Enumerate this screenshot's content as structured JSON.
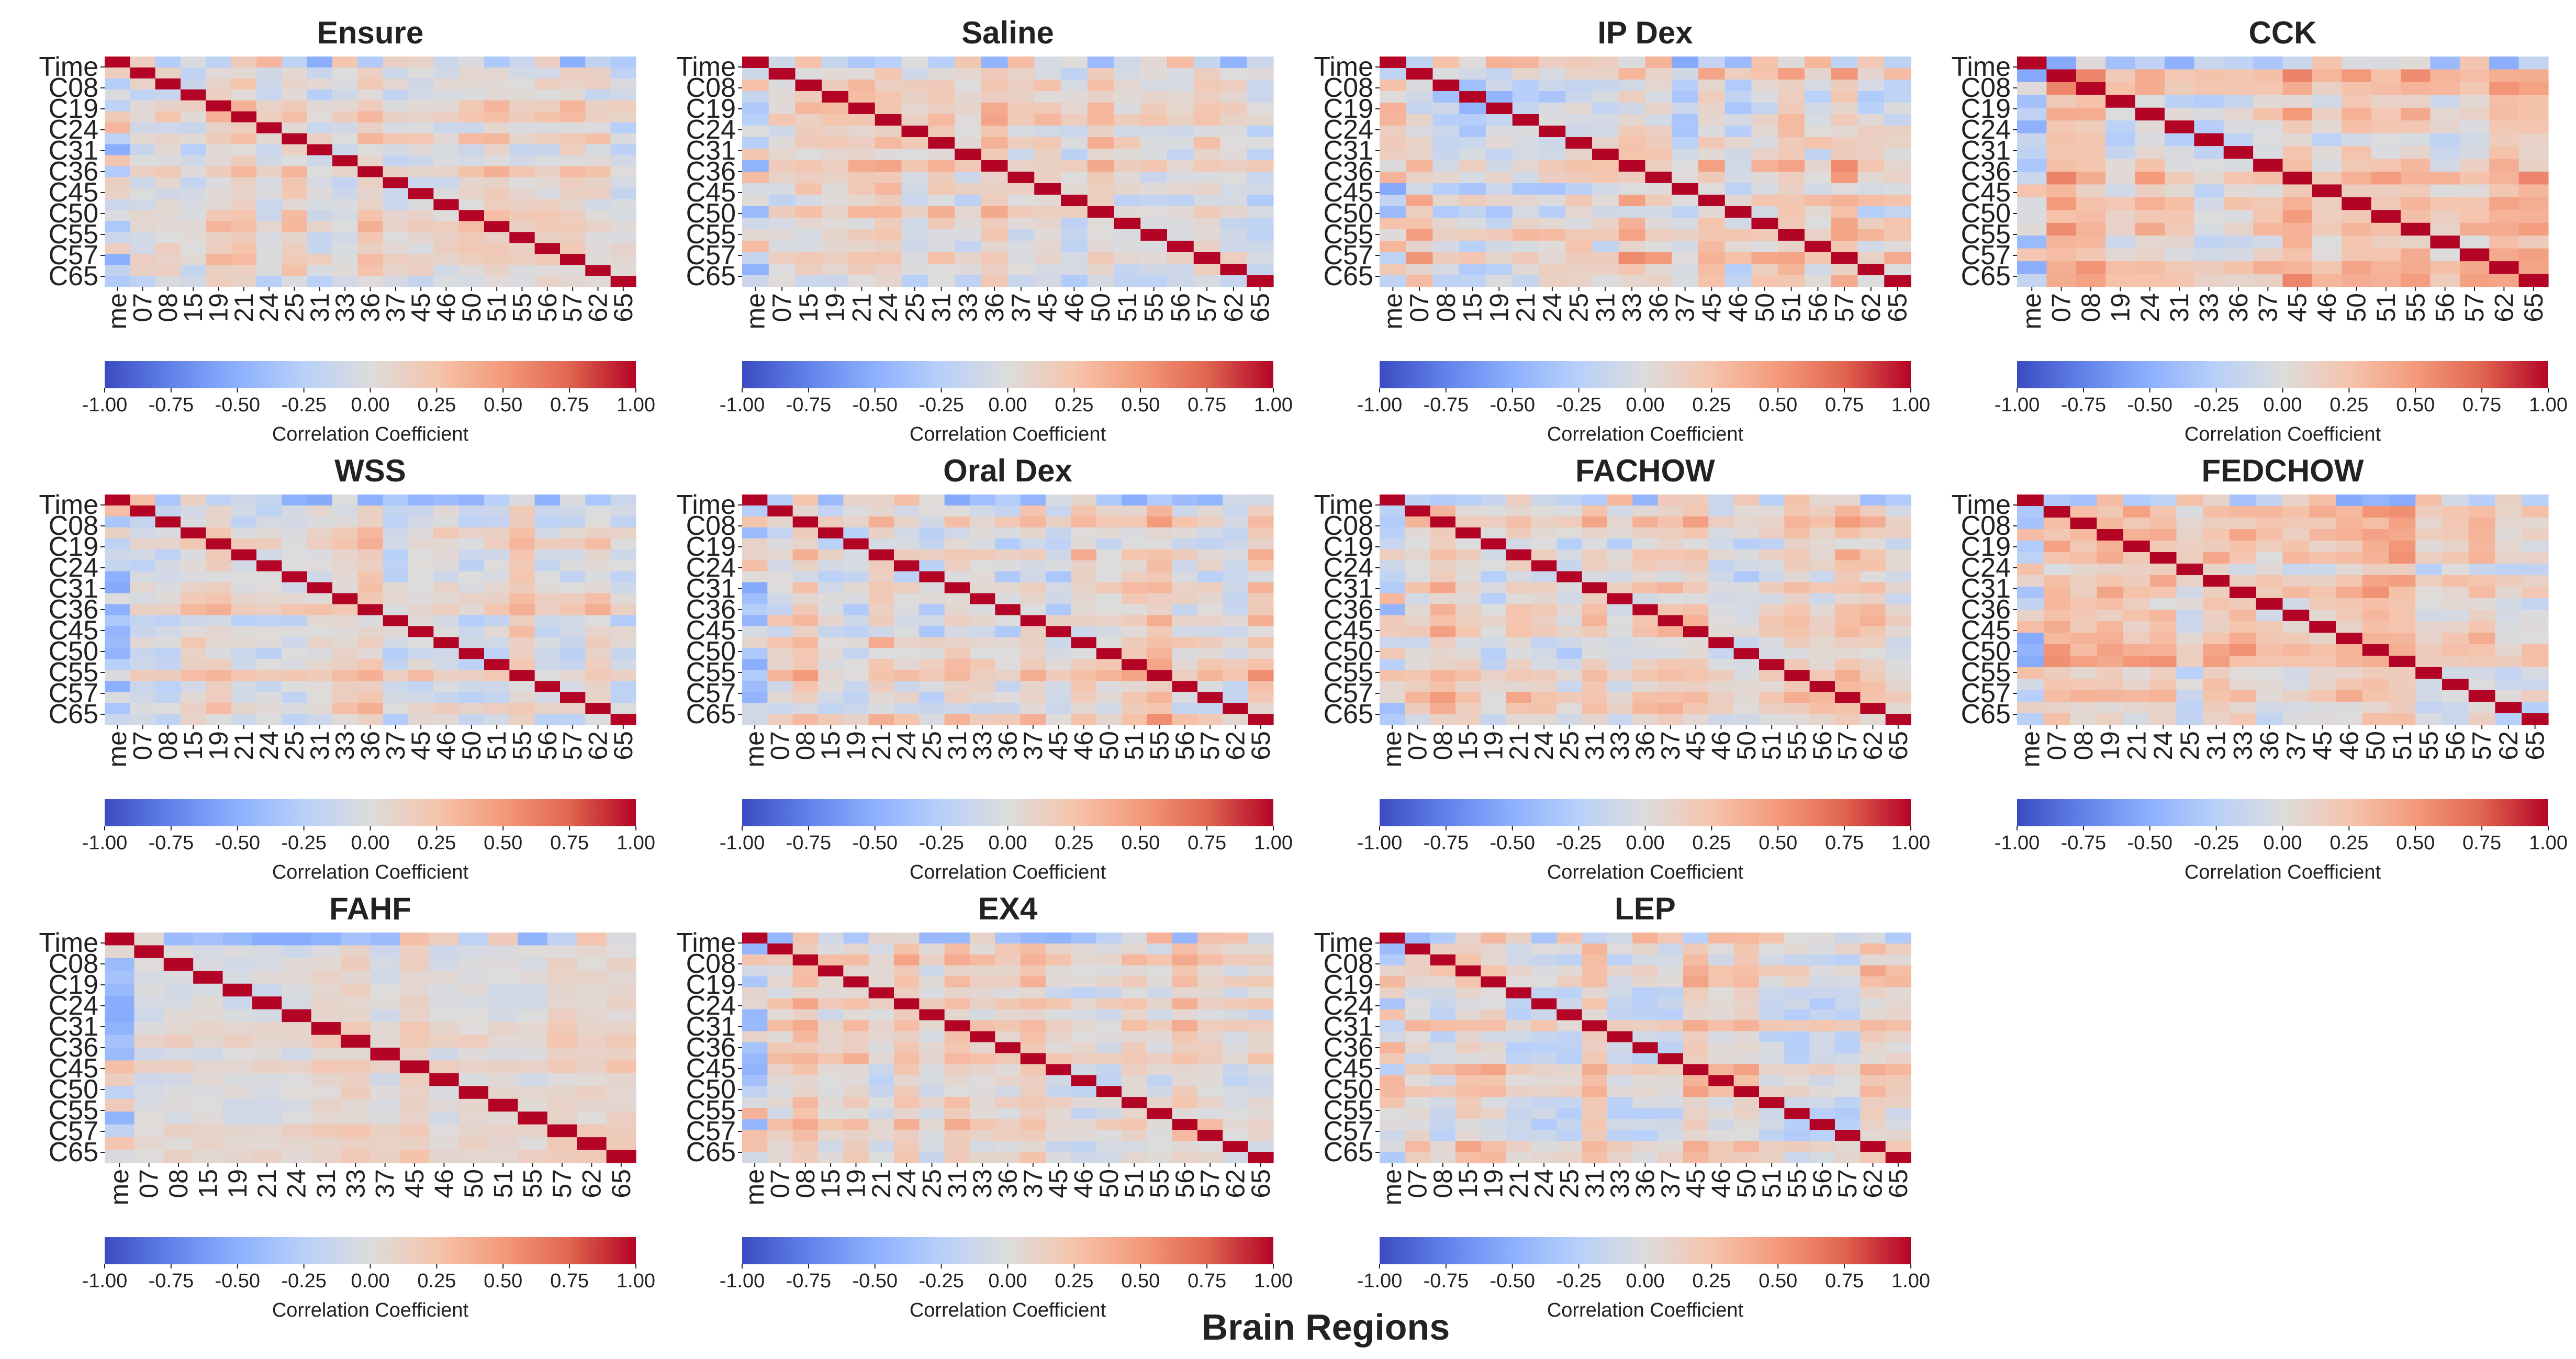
{
  "figure": {
    "supxlabel": "Brain Regions"
  },
  "chart_data": [
    {
      "type": "heatmap",
      "title": "Ensure",
      "seed": 11,
      "strength": 0.35,
      "y_tick_labels": [
        "Time",
        "C08",
        "C19",
        "C24",
        "C31",
        "C36",
        "C45",
        "C50",
        "C55",
        "C57",
        "C65"
      ],
      "x_tick_labels": [
        "me",
        "07",
        "08",
        "15",
        "19",
        "21",
        "24",
        "25",
        "31",
        "33",
        "36",
        "37",
        "45",
        "46",
        "50",
        "51",
        "55",
        "56",
        "57",
        "62",
        "65"
      ],
      "colorbar": {
        "label": "Correlation Coefficient",
        "range": [
          -1,
          1
        ],
        "ticks": [
          "-1.00",
          "-0.75",
          "-0.50",
          "-0.25",
          "0.00",
          "0.25",
          "0.50",
          "0.75",
          "1.00"
        ],
        "cmap": "coolwarm"
      }
    },
    {
      "type": "heatmap",
      "title": "Saline",
      "seed": 23,
      "strength": 0.35,
      "y_tick_labels": [
        "Time",
        "C08",
        "C19",
        "C24",
        "C31",
        "C36",
        "C45",
        "C50",
        "C55",
        "C57",
        "C65"
      ],
      "x_tick_labels": [
        "me",
        "07",
        "15",
        "19",
        "21",
        "24",
        "25",
        "31",
        "33",
        "36",
        "37",
        "45",
        "46",
        "50",
        "51",
        "55",
        "56",
        "57",
        "62",
        "65"
      ],
      "colorbar": {
        "label": "Correlation Coefficient",
        "range": [
          -1,
          1
        ],
        "ticks": [
          "-1.00",
          "-0.75",
          "-0.50",
          "-0.25",
          "0.00",
          "0.25",
          "0.50",
          "0.75",
          "1.00"
        ],
        "cmap": "coolwarm"
      }
    },
    {
      "type": "heatmap",
      "title": "IP Dex",
      "seed": 37,
      "strength": 0.5,
      "y_tick_labels": [
        "Time",
        "C08",
        "C19",
        "C24",
        "C31",
        "C36",
        "C45",
        "C50",
        "C55",
        "C57",
        "C65"
      ],
      "x_tick_labels": [
        "me",
        "07",
        "08",
        "15",
        "19",
        "21",
        "24",
        "25",
        "31",
        "33",
        "36",
        "37",
        "45",
        "46",
        "50",
        "51",
        "56",
        "57",
        "62",
        "65"
      ],
      "colorbar": {
        "label": "Correlation Coefficient",
        "range": [
          -1,
          1
        ],
        "ticks": [
          "-1.00",
          "-0.75",
          "-0.50",
          "-0.25",
          "0.00",
          "0.25",
          "0.50",
          "0.75",
          "1.00"
        ],
        "cmap": "coolwarm"
      }
    },
    {
      "type": "heatmap",
      "title": "CCK",
      "seed": 41,
      "strength": 0.4,
      "y_tick_labels": [
        "Time",
        "C08",
        "C19",
        "C24",
        "C31",
        "C36",
        "C45",
        "C50",
        "C55",
        "C57",
        "C65"
      ],
      "x_tick_labels": [
        "me",
        "07",
        "08",
        "19",
        "24",
        "31",
        "33",
        "36",
        "37",
        "45",
        "46",
        "50",
        "51",
        "55",
        "56",
        "57",
        "62",
        "65"
      ],
      "colorbar": {
        "label": "Correlation Coefficient",
        "range": [
          -1,
          1
        ],
        "ticks": [
          "-1.00",
          "-0.75",
          "-0.50",
          "-0.25",
          "0.00",
          "0.25",
          "0.50",
          "0.75",
          "1.00"
        ],
        "cmap": "coolwarm"
      }
    },
    {
      "type": "heatmap",
      "title": "WSS",
      "seed": 53,
      "strength": 0.35,
      "y_tick_labels": [
        "Time",
        "C08",
        "C19",
        "C24",
        "C31",
        "C36",
        "C45",
        "C50",
        "C55",
        "C57",
        "C65"
      ],
      "x_tick_labels": [
        "me",
        "07",
        "08",
        "15",
        "19",
        "21",
        "24",
        "25",
        "31",
        "33",
        "36",
        "37",
        "45",
        "46",
        "50",
        "51",
        "55",
        "56",
        "57",
        "62",
        "65"
      ],
      "colorbar": {
        "label": "Correlation Coefficient",
        "range": [
          -1,
          1
        ],
        "ticks": [
          "-1.00",
          "-0.75",
          "-0.50",
          "-0.25",
          "0.00",
          "0.25",
          "0.50",
          "0.75",
          "1.00"
        ],
        "cmap": "coolwarm"
      }
    },
    {
      "type": "heatmap",
      "title": "Oral Dex",
      "seed": 67,
      "strength": 0.4,
      "y_tick_labels": [
        "Time",
        "C08",
        "C19",
        "C24",
        "C31",
        "C36",
        "C45",
        "C50",
        "C55",
        "C57",
        "C65"
      ],
      "x_tick_labels": [
        "me",
        "07",
        "08",
        "15",
        "19",
        "21",
        "24",
        "25",
        "31",
        "33",
        "36",
        "37",
        "45",
        "46",
        "50",
        "51",
        "55",
        "56",
        "57",
        "62",
        "65"
      ],
      "colorbar": {
        "label": "Correlation Coefficient",
        "range": [
          -1,
          1
        ],
        "ticks": [
          "-1.00",
          "-0.75",
          "-0.50",
          "-0.25",
          "0.00",
          "0.25",
          "0.50",
          "0.75",
          "1.00"
        ],
        "cmap": "coolwarm"
      }
    },
    {
      "type": "heatmap",
      "title": "FACHOW",
      "seed": 79,
      "strength": 0.35,
      "y_tick_labels": [
        "Time",
        "C08",
        "C19",
        "C24",
        "C31",
        "C36",
        "C45",
        "C50",
        "C55",
        "C57",
        "C65"
      ],
      "x_tick_labels": [
        "me",
        "07",
        "08",
        "15",
        "19",
        "21",
        "24",
        "25",
        "31",
        "33",
        "36",
        "37",
        "45",
        "46",
        "50",
        "51",
        "55",
        "56",
        "57",
        "62",
        "65"
      ],
      "colorbar": {
        "label": "Correlation Coefficient",
        "range": [
          -1,
          1
        ],
        "ticks": [
          "-1.00",
          "-0.75",
          "-0.50",
          "-0.25",
          "0.00",
          "0.25",
          "0.50",
          "0.75",
          "1.00"
        ],
        "cmap": "coolwarm"
      }
    },
    {
      "type": "heatmap",
      "title": "FEDCHOW",
      "seed": 83,
      "strength": 0.45,
      "y_tick_labels": [
        "Time",
        "C08",
        "C19",
        "C24",
        "C31",
        "C36",
        "C45",
        "C50",
        "C55",
        "C57",
        "C65"
      ],
      "x_tick_labels": [
        "me",
        "07",
        "08",
        "19",
        "21",
        "24",
        "25",
        "31",
        "33",
        "36",
        "37",
        "45",
        "46",
        "50",
        "51",
        "55",
        "56",
        "57",
        "62",
        "65"
      ],
      "colorbar": {
        "label": "Correlation Coefficient",
        "range": [
          -1,
          1
        ],
        "ticks": [
          "-1.00",
          "-0.75",
          "-0.50",
          "-0.25",
          "0.00",
          "0.25",
          "0.50",
          "0.75",
          "1.00"
        ],
        "cmap": "coolwarm"
      }
    },
    {
      "type": "heatmap",
      "title": "FAHF",
      "seed": 97,
      "strength": 0.2,
      "y_tick_labels": [
        "Time",
        "C08",
        "C19",
        "C24",
        "C31",
        "C36",
        "C45",
        "C50",
        "C55",
        "C57",
        "C65"
      ],
      "x_tick_labels": [
        "me",
        "07",
        "08",
        "15",
        "19",
        "21",
        "24",
        "31",
        "33",
        "37",
        "45",
        "46",
        "50",
        "51",
        "55",
        "57",
        "62",
        "65"
      ],
      "colorbar": {
        "label": "Correlation Coefficient",
        "range": [
          -1,
          1
        ],
        "ticks": [
          "-1.00",
          "-0.75",
          "-0.50",
          "-0.25",
          "0.00",
          "0.25",
          "0.50",
          "0.75",
          "1.00"
        ],
        "cmap": "coolwarm"
      }
    },
    {
      "type": "heatmap",
      "title": "EX4",
      "seed": 101,
      "strength": 0.3,
      "y_tick_labels": [
        "Time",
        "C08",
        "C19",
        "C24",
        "C31",
        "C36",
        "C45",
        "C50",
        "C55",
        "C57",
        "C65"
      ],
      "x_tick_labels": [
        "me",
        "07",
        "08",
        "15",
        "19",
        "21",
        "24",
        "25",
        "31",
        "33",
        "36",
        "37",
        "45",
        "46",
        "50",
        "51",
        "55",
        "56",
        "57",
        "62",
        "65"
      ],
      "colorbar": {
        "label": "Correlation Coefficient",
        "range": [
          -1,
          1
        ],
        "ticks": [
          "-1.00",
          "-0.75",
          "-0.50",
          "-0.25",
          "0.00",
          "0.25",
          "0.50",
          "0.75",
          "1.00"
        ],
        "cmap": "coolwarm"
      }
    },
    {
      "type": "heatmap",
      "title": "LEP",
      "seed": 113,
      "strength": 0.35,
      "y_tick_labels": [
        "Time",
        "C08",
        "C19",
        "C24",
        "C31",
        "C36",
        "C45",
        "C50",
        "C55",
        "C57",
        "C65"
      ],
      "x_tick_labels": [
        "me",
        "07",
        "08",
        "15",
        "19",
        "21",
        "24",
        "25",
        "31",
        "33",
        "36",
        "37",
        "45",
        "46",
        "50",
        "51",
        "55",
        "56",
        "57",
        "62",
        "65"
      ],
      "colorbar": {
        "label": "Correlation Coefficient",
        "range": [
          -1,
          1
        ],
        "ticks": [
          "-1.00",
          "-0.75",
          "-0.50",
          "-0.25",
          "0.00",
          "0.25",
          "0.50",
          "0.75",
          "1.00"
        ],
        "cmap": "coolwarm"
      }
    }
  ]
}
